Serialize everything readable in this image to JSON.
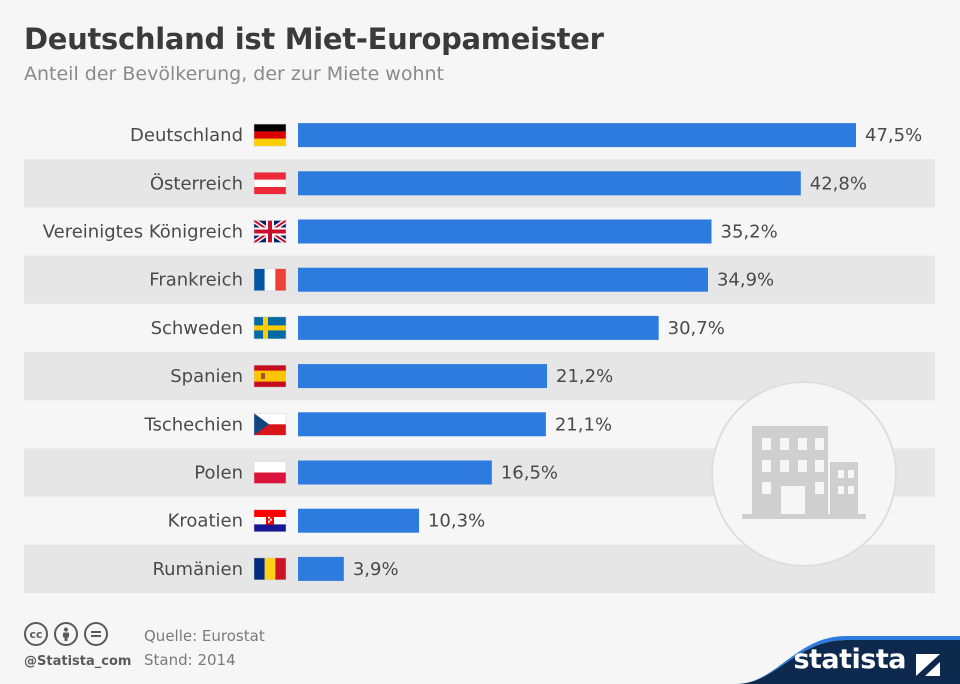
{
  "header": {
    "title": "Deutschland ist Miet-Europameister",
    "subtitle": "Anteil der Bevölkerung, der zur Miete wohnt"
  },
  "chart_data": {
    "type": "bar",
    "orientation": "horizontal",
    "categories": [
      "Deutschland",
      "Österreich",
      "Vereinigtes Königreich",
      "Frankreich",
      "Schweden",
      "Spanien",
      "Tschechien",
      "Polen",
      "Kroatien",
      "Rumänien"
    ],
    "values": [
      47.5,
      42.8,
      35.2,
      34.9,
      30.7,
      21.2,
      21.1,
      16.5,
      10.3,
      3.9
    ],
    "value_labels": [
      "47,5%",
      "42,8%",
      "35,2%",
      "34,9%",
      "30,7%",
      "21,2%",
      "21,1%",
      "16,5%",
      "10,3%",
      "3,9%"
    ],
    "flags": [
      "de-flag-icon",
      "at-flag-icon",
      "gb-flag-icon",
      "fr-flag-icon",
      "se-flag-icon",
      "es-flag-icon",
      "cz-flag-icon",
      "pl-flag-icon",
      "hr-flag-icon",
      "ro-flag-icon"
    ],
    "bar_color": "#2d7bde",
    "xlim": [
      0,
      47.5
    ],
    "grid": false,
    "legend": "none"
  },
  "decoration": {
    "icon": "building-icon"
  },
  "footer": {
    "handle": "@Statista_com",
    "source": "Quelle: Eurostat",
    "date": "Stand: 2014",
    "brand": "statista"
  }
}
